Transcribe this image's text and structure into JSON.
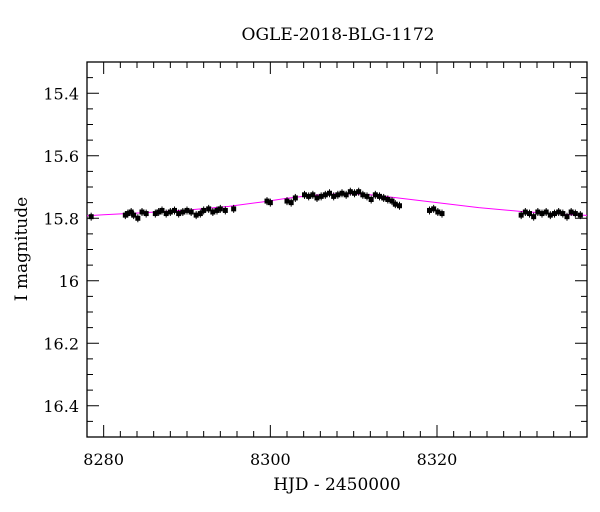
{
  "chart_data": {
    "type": "scatter",
    "title": "OGLE-2018-BLG-1172",
    "xlabel": "HJD - 2450000",
    "ylabel": "I magnitude",
    "xlim": [
      8278,
      8338
    ],
    "ylim": [
      16.5,
      15.3
    ],
    "y_inverted": true,
    "grid": false,
    "x_ticks": {
      "major": [
        8280,
        8300,
        8320
      ],
      "labels": [
        "8280",
        "8300",
        "8320"
      ],
      "minor_step": 2
    },
    "y_ticks": {
      "major": [
        15.4,
        15.6,
        15.8,
        16,
        16.2,
        16.4
      ],
      "labels": [
        "15.4",
        "15.6",
        "15.8",
        "16",
        "16.2",
        "16.4"
      ],
      "minor_step": 0.05
    },
    "colors": {
      "points": "#000000",
      "model": "#ff00ff"
    },
    "series": [
      {
        "kind": "points",
        "x": [
          8278.5,
          8282.6,
          8282.9,
          8283.3,
          8283.6,
          8284.1,
          8284.6,
          8285.1,
          8286.2,
          8286.6,
          8287.0,
          8287.5,
          8288.0,
          8288.5,
          8289.0,
          8289.5,
          8290.0,
          8290.5,
          8291.1,
          8291.6,
          8292.0,
          8292.6,
          8293.1,
          8293.6,
          8294.0,
          8294.6,
          8295.6,
          8299.6,
          8300.0,
          8302.0,
          8302.5,
          8303.0,
          8304.1,
          8304.6,
          8305.1,
          8305.6,
          8306.1,
          8306.6,
          8307.1,
          8307.6,
          8308.1,
          8308.6,
          8309.1,
          8309.6,
          8310.1,
          8310.6,
          8311.1,
          8311.6,
          8312.1,
          8312.6,
          8313.1,
          8313.6,
          8314.1,
          8314.6,
          8315.0,
          8315.5,
          8319.1,
          8319.6,
          8320.1,
          8320.6,
          8330.1,
          8330.6,
          8331.1,
          8331.6,
          8332.1,
          8332.6,
          8333.1,
          8333.6,
          8334.1,
          8334.6,
          8335.1,
          8335.6,
          8336.1,
          8336.6,
          8337.2
        ],
        "y": [
          15.795,
          15.79,
          15.785,
          15.78,
          15.79,
          15.8,
          15.78,
          15.785,
          15.785,
          15.78,
          15.775,
          15.785,
          15.78,
          15.775,
          15.785,
          15.78,
          15.775,
          15.78,
          15.79,
          15.785,
          15.775,
          15.77,
          15.78,
          15.775,
          15.77,
          15.775,
          15.77,
          15.745,
          15.75,
          15.745,
          15.75,
          15.735,
          15.725,
          15.73,
          15.725,
          15.735,
          15.73,
          15.725,
          15.72,
          15.73,
          15.725,
          15.72,
          15.725,
          15.715,
          15.72,
          15.715,
          15.725,
          15.73,
          15.74,
          15.725,
          15.73,
          15.735,
          15.74,
          15.745,
          15.755,
          15.76,
          15.775,
          15.77,
          15.78,
          15.785,
          15.79,
          15.78,
          15.785,
          15.795,
          15.78,
          15.785,
          15.78,
          15.79,
          15.785,
          15.78,
          15.785,
          15.795,
          15.78,
          15.785,
          15.79
        ]
      },
      {
        "kind": "line",
        "x": [
          8278,
          8280,
          8285,
          8290,
          8295,
          8299,
          8302,
          8305,
          8308,
          8310,
          8312,
          8315,
          8320,
          8325,
          8330,
          8335,
          8338
        ],
        "y": [
          15.792,
          15.789,
          15.782,
          15.774,
          15.762,
          15.748,
          15.736,
          15.727,
          15.722,
          15.722,
          15.725,
          15.734,
          15.75,
          15.766,
          15.778,
          15.787,
          15.791
        ]
      }
    ]
  }
}
